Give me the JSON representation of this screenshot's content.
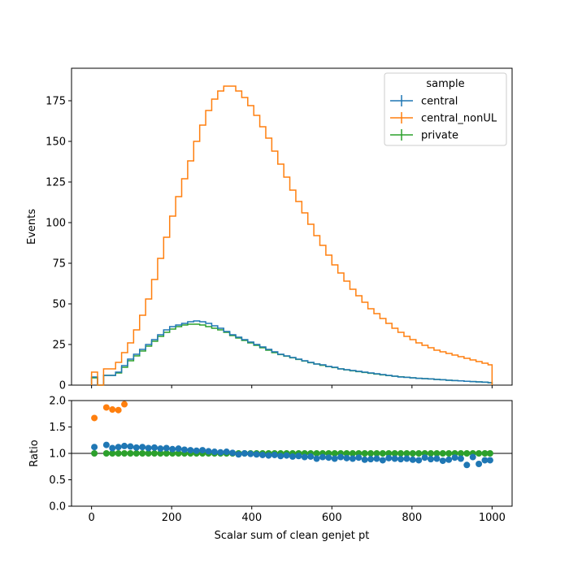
{
  "chart_data": [
    {
      "type": "line",
      "panel": "main",
      "ylabel": "Events",
      "xlim": [
        -50,
        1050
      ],
      "ylim": [
        0,
        195
      ],
      "yticks": [
        0,
        25,
        50,
        75,
        100,
        125,
        150,
        175
      ],
      "ytick_labels": [
        "0",
        "25",
        "50",
        "75",
        "100",
        "125",
        "150",
        "175"
      ],
      "legend": {
        "title": "sample",
        "placement": "top-right",
        "entries": [
          "central",
          "central_nonUL",
          "private"
        ]
      },
      "colors": {
        "central": "#1f77b4",
        "central_nonUL": "#ff7f0e",
        "private": "#2ca02c"
      },
      "bin_edges": [
        0,
        15,
        30,
        45,
        60,
        75,
        90,
        105,
        120,
        135,
        150,
        165,
        180,
        195,
        210,
        225,
        240,
        255,
        270,
        285,
        300,
        315,
        330,
        345,
        360,
        375,
        390,
        405,
        420,
        435,
        450,
        465,
        480,
        495,
        510,
        525,
        540,
        555,
        570,
        585,
        600,
        615,
        630,
        645,
        660,
        675,
        690,
        705,
        720,
        735,
        750,
        765,
        780,
        795,
        810,
        825,
        840,
        855,
        870,
        885,
        900,
        915,
        930,
        945,
        960,
        975,
        990,
        1000
      ],
      "series": [
        {
          "name": "central",
          "values": [
            5,
            0,
            6,
            6,
            8,
            12,
            16,
            19,
            22,
            25,
            28,
            31,
            34,
            36,
            37,
            38,
            39,
            39.5,
            39,
            38,
            36.5,
            35,
            33,
            31,
            29.5,
            28,
            26.5,
            25,
            23.5,
            22,
            20.5,
            19,
            18,
            17,
            16,
            15,
            14,
            13,
            12.5,
            11.5,
            11,
            10,
            9.5,
            9,
            8.5,
            8,
            7.5,
            7,
            6.5,
            6,
            5.5,
            5,
            4.8,
            4.5,
            4.2,
            4,
            3.8,
            3.5,
            3.3,
            3,
            2.8,
            2.6,
            2.4,
            2.2,
            2,
            1.8,
            1.5
          ]
        },
        {
          "name": "central_nonUL",
          "values": [
            8,
            0,
            10,
            10,
            14,
            20,
            26,
            34,
            43,
            53,
            65,
            78,
            91,
            104,
            116,
            127,
            138,
            150,
            160,
            169,
            176,
            181,
            184,
            184,
            181,
            177,
            172,
            166,
            159,
            152,
            144,
            136,
            128,
            120,
            113,
            106,
            99,
            92,
            86,
            80,
            74,
            69,
            64,
            59,
            55,
            51,
            47,
            44,
            41,
            38,
            35,
            32.5,
            30,
            28,
            26,
            24.5,
            23,
            21.5,
            20.5,
            19.5,
            18.5,
            17.5,
            16.5,
            15.5,
            14.5,
            13.5,
            12.5
          ]
        },
        {
          "name": "private",
          "values": [
            4.5,
            0,
            6,
            6,
            7.5,
            11,
            15,
            18,
            21,
            24,
            27,
            30,
            32.5,
            34.5,
            36,
            37,
            37.5,
            37.5,
            37,
            36,
            35,
            34,
            32.5,
            30.5,
            29,
            27.5,
            26,
            24.5,
            23,
            21.5,
            20,
            18.8,
            17.8,
            16.8,
            15.8,
            14.8,
            13.8,
            13,
            12.2,
            11.4,
            10.8,
            10,
            9.4,
            8.8,
            8.3,
            7.8,
            7.3,
            6.8,
            6.3,
            5.9,
            5.5,
            5.1,
            4.8,
            4.5,
            4.2,
            4,
            3.8,
            3.5,
            3.3,
            3,
            2.8,
            2.6,
            2.4,
            2.2,
            2,
            1.8,
            1.5
          ]
        }
      ]
    },
    {
      "type": "scatter",
      "panel": "ratio",
      "xlabel": "Scalar sum of clean genjet pt",
      "ylabel": "Ratio",
      "xlim": [
        -50,
        1050
      ],
      "ylim": [
        0.0,
        2.0
      ],
      "xticks": [
        0,
        200,
        400,
        600,
        800,
        1000
      ],
      "xtick_labels": [
        "0",
        "200",
        "400",
        "600",
        "800",
        "1000"
      ],
      "yticks": [
        0.0,
        0.5,
        1.0,
        1.5,
        2.0
      ],
      "ytick_labels": [
        "0.0",
        "0.5",
        "1.0",
        "1.5",
        "2.0"
      ],
      "reference_line": 1.0,
      "series": [
        {
          "name": "central_nonUL",
          "x": [
            7,
            37,
            52,
            67,
            82
          ],
          "y": [
            1.67,
            1.87,
            1.83,
            1.82,
            1.93
          ]
        },
        {
          "name": "private",
          "x": [
            7,
            37,
            52,
            67,
            82,
            97,
            112,
            127,
            142,
            157,
            172,
            187,
            202,
            217,
            232,
            247,
            262,
            277,
            292,
            307,
            322,
            337,
            352,
            367,
            382,
            397,
            412,
            427,
            442,
            457,
            472,
            487,
            502,
            517,
            532,
            547,
            562,
            577,
            592,
            607,
            622,
            637,
            652,
            667,
            682,
            697,
            712,
            727,
            742,
            757,
            772,
            787,
            802,
            817,
            832,
            847,
            862,
            877,
            892,
            907,
            922,
            937,
            952,
            967,
            982,
            995
          ],
          "y": [
            1,
            1,
            1,
            1,
            1,
            1,
            1,
            1,
            1,
            1,
            1,
            1,
            1,
            1,
            1,
            1,
            1,
            1,
            1,
            1,
            1,
            1,
            1,
            1,
            1,
            1,
            1,
            1,
            1,
            1,
            1,
            1,
            1,
            1,
            1,
            1,
            1,
            1,
            1,
            1,
            1,
            1,
            1,
            1,
            1,
            1,
            1,
            1,
            1,
            1,
            1,
            1,
            1,
            1,
            1,
            1,
            1,
            1,
            1,
            1,
            1,
            1,
            1,
            1,
            1,
            1
          ]
        },
        {
          "name": "central",
          "x": [
            7,
            37,
            52,
            67,
            82,
            97,
            112,
            127,
            142,
            157,
            172,
            187,
            202,
            217,
            232,
            247,
            262,
            277,
            292,
            307,
            322,
            337,
            352,
            367,
            382,
            397,
            412,
            427,
            442,
            457,
            472,
            487,
            502,
            517,
            532,
            547,
            562,
            577,
            592,
            607,
            622,
            637,
            652,
            667,
            682,
            697,
            712,
            727,
            742,
            757,
            772,
            787,
            802,
            817,
            832,
            847,
            862,
            877,
            892,
            907,
            922,
            937,
            952,
            967,
            982,
            995
          ],
          "y": [
            1.12,
            1.16,
            1.1,
            1.12,
            1.14,
            1.13,
            1.11,
            1.12,
            1.1,
            1.11,
            1.09,
            1.1,
            1.08,
            1.09,
            1.07,
            1.06,
            1.05,
            1.06,
            1.04,
            1.03,
            1.02,
            1.03,
            1.01,
            0.98,
            1.0,
            0.99,
            0.98,
            0.97,
            0.96,
            0.97,
            0.95,
            0.96,
            0.94,
            0.95,
            0.93,
            0.94,
            0.9,
            0.93,
            0.92,
            0.9,
            0.93,
            0.91,
            0.9,
            0.92,
            0.88,
            0.89,
            0.9,
            0.87,
            0.91,
            0.9,
            0.89,
            0.9,
            0.88,
            0.87,
            0.92,
            0.89,
            0.9,
            0.86,
            0.88,
            0.92,
            0.9,
            0.78,
            0.93,
            0.8,
            0.87,
            0.87
          ]
        }
      ]
    }
  ]
}
